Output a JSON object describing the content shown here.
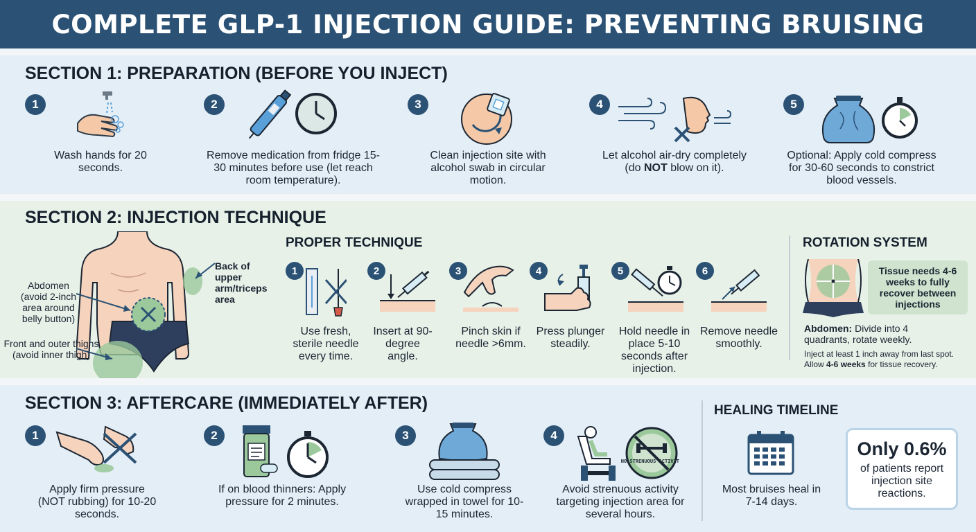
{
  "title": "COMPLETE GLP-1 INJECTION GUIDE: PREVENTING BRUISING",
  "section1": {
    "title": "SECTION 1: PREPARATION (BEFORE YOU INJECT)",
    "steps": [
      {
        "num": "1",
        "icon": "hand-wash-icon",
        "text": "Wash hands for 20 seconds."
      },
      {
        "num": "2",
        "icon": "pen-clock-icon",
        "text": "Remove medication from fridge 15-30 minutes before use (let reach room temperature)."
      },
      {
        "num": "3",
        "icon": "alcohol-swab-icon",
        "text": "Clean injection site with alcohol swab in circular motion."
      },
      {
        "num": "4",
        "icon": "no-blow-icon",
        "pre": "Let alcohol air-dry completely (do ",
        "bold": "NOT",
        "post": " blow on it)."
      },
      {
        "num": "5",
        "icon": "ice-pack-timer-icon",
        "text": "Optional: Apply cold compress for 30-60 seconds to constrict blood vessels."
      }
    ]
  },
  "section2": {
    "title": "SECTION 2: INJECTION TECHNIQUE",
    "body_labels": {
      "abdomen_title": "Abdomen",
      "abdomen_note": "(avoid 2-inch area around belly button)",
      "arm": "Back of upper arm/triceps area",
      "thigh_title": "Front and outer thighs",
      "thigh_note": "(avoid inner thigh)"
    },
    "proper_technique": {
      "title": "PROPER TECHNIQUE",
      "steps": [
        {
          "num": "1",
          "icon": "sterile-needle-icon",
          "text": "Use fresh, sterile needle every time."
        },
        {
          "num": "2",
          "icon": "syringe-angle-icon",
          "text": "Insert at 90-degree angle."
        },
        {
          "num": "3",
          "icon": "pinch-skin-icon",
          "text": "Pinch skin if needle >6mm."
        },
        {
          "num": "4",
          "icon": "press-plunger-icon",
          "text": "Press plunger steadily."
        },
        {
          "num": "5",
          "icon": "syringe-stopwatch-icon",
          "text": "Hold needle in place 5-10 seconds after injection."
        },
        {
          "num": "6",
          "icon": "remove-needle-icon",
          "text": "Remove needle smoothly."
        }
      ]
    },
    "rotation": {
      "title": "ROTATION SYSTEM",
      "box": "Tissue needs 4-6 weeks to fully recover between injections",
      "abdomen_bold": "Abdomen:",
      "abdomen_text": " Divide into 4 quadrants, rotate weekly.",
      "note1": "Inject at least 1 inch away from last spot.",
      "note2_pre": "Allow ",
      "note2_bold": "4-6 weeks",
      "note2_post": " for tissue recovery."
    }
  },
  "section3": {
    "title": "SECTION 3: AFTERCARE (IMMEDIATELY AFTER)",
    "steps": [
      {
        "num": "1",
        "icon": "press-no-rub-icon",
        "text": "Apply firm pressure (NOT rubbing) for 10-20 seconds."
      },
      {
        "num": "2",
        "icon": "pill-bottle-stopwatch-icon",
        "text": "If on blood thinners: Apply pressure for 2 minutes."
      },
      {
        "num": "3",
        "icon": "ice-pack-towel-icon",
        "text": "Use cold compress wrapped in towel for 10-15 minutes."
      },
      {
        "num": "4",
        "icon": "no-exercise-icon",
        "text": "Avoid strenuous activity targeting injection area for several hours.",
        "sign": "NO STRENUOUS ACTIVITY"
      }
    ],
    "healing": {
      "title": "HEALING TIMELINE",
      "text": "Most bruises heal in 7-14 days.",
      "stat_value": "Only 0.6%",
      "stat_text": "of patients report injection site reactions."
    }
  }
}
